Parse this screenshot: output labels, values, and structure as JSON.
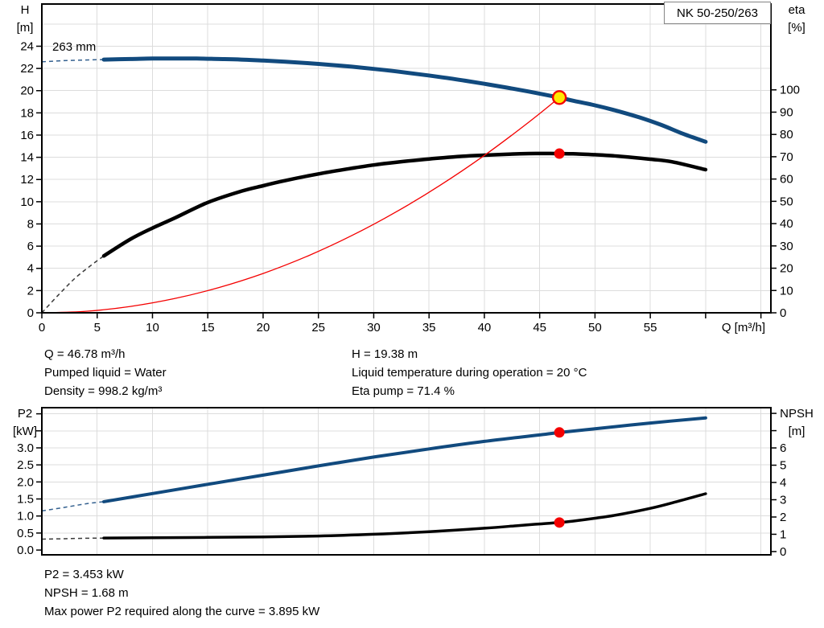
{
  "title_box": "NK 50-250/263",
  "colors": {
    "curve_blue": "#114a7e",
    "curve_black": "#000000",
    "curve_red": "#f40000",
    "marker_red": "#f40000",
    "marker_yellow": "#ffe800",
    "dash_blue": "#33608f",
    "dash_black": "#3a3a3a",
    "grid": "#dcdcdc",
    "frame": "#000000"
  },
  "info_top": {
    "left": [
      "Q = 46.78 m³/h",
      "Pumped liquid = Water",
      "Density = 998.2 kg/m³"
    ],
    "right": [
      "H = 19.38 m",
      "Liquid temperature during operation = 20 °C",
      "Eta pump = 71.4 %"
    ]
  },
  "info_bottom": [
    "P2 = 3.453 kW",
    "NPSH = 1.68 m",
    "Max power P2 required along the curve = 3.895 kW"
  ],
  "duty_point": {
    "Q": 46.78,
    "H": 19.38,
    "eta": 71.4,
    "P2": 3.453,
    "NPSH": 1.68,
    "max_P2": 3.895
  },
  "chart_data": [
    {
      "type": "line",
      "name": "head-efficiency-chart",
      "x_axis": {
        "label": "Q [m³/h]",
        "lim": [
          0,
          65.9
        ],
        "tick_values": [
          0,
          5,
          10,
          15,
          20,
          25,
          30,
          35,
          40,
          45,
          50,
          55,
          60,
          65
        ],
        "tick_labels": [
          "0",
          "5",
          "10",
          "15",
          "20",
          "25",
          "30",
          "35",
          "40",
          "45",
          "50",
          "55",
          "",
          ""
        ],
        "grid_values": [
          5,
          10,
          15,
          20,
          25,
          30,
          35,
          40,
          45,
          50,
          55,
          60,
          65
        ],
        "show_ticks": true
      },
      "left_axis": {
        "label_lines": [
          "H",
          "[m]"
        ],
        "lim": [
          0,
          27.8
        ],
        "tick_values": [
          0,
          2,
          4,
          6,
          8,
          10,
          12,
          14,
          16,
          18,
          20,
          22,
          24
        ],
        "tick_labels": [
          "0",
          "2",
          "4",
          "6",
          "8",
          "10",
          "12",
          "14",
          "16",
          "18",
          "20",
          "22",
          "24"
        ],
        "grid_values": [
          2,
          4,
          6,
          8,
          10,
          12,
          14,
          16,
          18,
          20,
          22,
          24,
          26
        ]
      },
      "right_axis": {
        "label_lines": [
          "eta",
          "[%]"
        ],
        "lim": [
          0,
          138.5
        ],
        "tick_values": [
          0,
          10,
          20,
          30,
          40,
          50,
          60,
          70,
          80,
          90,
          100
        ],
        "tick_labels": [
          "0",
          "10",
          "20",
          "30",
          "40",
          "50",
          "60",
          "70",
          "80",
          "90",
          "100"
        ]
      },
      "series": [
        {
          "name": "head-curve",
          "axis": "left",
          "color_key": "curve_blue",
          "width": 5,
          "dash_color_key": "dash_blue",
          "dash_points": [
            [
              0,
              22.6
            ],
            [
              2,
              22.7
            ],
            [
              4,
              22.76
            ],
            [
              5.6,
              22.8
            ]
          ],
          "points": [
            [
              5.6,
              22.8
            ],
            [
              8,
              22.85
            ],
            [
              10,
              22.89
            ],
            [
              12,
              22.9
            ],
            [
              14,
              22.89
            ],
            [
              16,
              22.85
            ],
            [
              18,
              22.8
            ],
            [
              20,
              22.71
            ],
            [
              22,
              22.61
            ],
            [
              24,
              22.48
            ],
            [
              26,
              22.33
            ],
            [
              28,
              22.16
            ],
            [
              30,
              21.96
            ],
            [
              32,
              21.74
            ],
            [
              34,
              21.49
            ],
            [
              36,
              21.23
            ],
            [
              38,
              20.94
            ],
            [
              40,
              20.62
            ],
            [
              42,
              20.28
            ],
            [
              44,
              19.92
            ],
            [
              46.78,
              19.38
            ],
            [
              48,
              19.1
            ],
            [
              50,
              18.68
            ],
            [
              52,
              18.18
            ],
            [
              54,
              17.6
            ],
            [
              56,
              16.91
            ],
            [
              58,
              16.1
            ],
            [
              60,
              15.4
            ]
          ]
        },
        {
          "name": "efficiency-curve",
          "axis": "right",
          "color_key": "curve_black",
          "width": 4.5,
          "dash_color_key": "dash_black",
          "dash_points": [
            [
              0,
              0
            ],
            [
              1.5,
              8
            ],
            [
              3,
              15.5
            ],
            [
              4.5,
              21.5
            ],
            [
              5.6,
              25.5
            ]
          ],
          "points": [
            [
              5.6,
              25.5
            ],
            [
              8,
              33
            ],
            [
              10,
              38
            ],
            [
              12,
              42.5
            ],
            [
              15,
              49.5
            ],
            [
              18,
              54.5
            ],
            [
              20,
              57
            ],
            [
              22,
              59.3
            ],
            [
              25,
              62.3
            ],
            [
              28,
              64.8
            ],
            [
              30,
              66.3
            ],
            [
              32,
              67.5
            ],
            [
              35,
              69
            ],
            [
              38,
              70.2
            ],
            [
              40,
              70.7
            ],
            [
              42,
              71.1
            ],
            [
              44,
              71.4
            ],
            [
              46,
              71.45
            ],
            [
              46.78,
              71.4
            ],
            [
              48,
              71.3
            ],
            [
              50,
              70.9
            ],
            [
              52,
              70.3
            ],
            [
              55,
              68.9
            ],
            [
              57,
              67.7
            ],
            [
              60,
              64.2
            ]
          ]
        },
        {
          "name": "system-curve",
          "axis": "left",
          "color_key": "curve_red",
          "width": 1.3,
          "points": [
            [
              0,
              0
            ],
            [
              4,
              0.14
            ],
            [
              8,
              0.57
            ],
            [
              12,
              1.28
            ],
            [
              16,
              2.27
            ],
            [
              20,
              3.54
            ],
            [
              24,
              5.1
            ],
            [
              28,
              6.94
            ],
            [
              32,
              9.07
            ],
            [
              36,
              11.48
            ],
            [
              40,
              14.17
            ],
            [
              44,
              17.15
            ],
            [
              46.78,
              19.38
            ]
          ]
        }
      ],
      "markers": [
        {
          "q": 46.78,
          "v": 19.38,
          "axis": "left",
          "style": "duty-ring"
        },
        {
          "q": 46.78,
          "v": 71.4,
          "axis": "right",
          "style": "dot"
        }
      ],
      "annotations": [
        {
          "text": "263 mm",
          "q": 0.95,
          "v": 23.6,
          "axis": "left"
        }
      ]
    },
    {
      "type": "line",
      "name": "power-npsh-chart",
      "x_axis": {
        "label": "",
        "lim": [
          0,
          65.9
        ],
        "tick_values": [],
        "tick_labels": [],
        "grid_values": [
          5,
          10,
          15,
          20,
          25,
          30,
          35,
          40,
          45,
          50,
          55,
          60,
          65
        ],
        "show_ticks": false
      },
      "left_axis": {
        "label_lines": [
          "P2",
          "[kW]"
        ],
        "lim": [
          -0.14,
          4.18
        ],
        "tick_values": [
          0,
          0.5,
          1,
          1.5,
          2,
          2.5,
          3,
          3.5,
          4
        ],
        "tick_labels": [
          "0.0",
          "0.5",
          "1.0",
          "1.5",
          "2.0",
          "2.5",
          "3.0",
          "",
          ""
        ],
        "grid_values": [
          0.5,
          1,
          1.5,
          2,
          2.5,
          3,
          3.5,
          4
        ]
      },
      "right_axis": {
        "label_lines": [
          "NPSH",
          "[m]"
        ],
        "lim": [
          -0.19,
          8.33
        ],
        "tick_values": [
          0,
          1,
          2,
          3,
          4,
          5,
          6,
          7,
          8
        ],
        "tick_labels": [
          "0",
          "1",
          "2",
          "3",
          "4",
          "5",
          "6",
          "",
          ""
        ]
      },
      "series": [
        {
          "name": "power-curve",
          "axis": "left",
          "color_key": "curve_blue",
          "width": 4,
          "dash_color_key": "dash_blue",
          "dash_points": [
            [
              0,
              1.15
            ],
            [
              2,
              1.25
            ],
            [
              4,
              1.36
            ],
            [
              5.6,
              1.42
            ]
          ],
          "points": [
            [
              5.6,
              1.42
            ],
            [
              10,
              1.66
            ],
            [
              15,
              1.93
            ],
            [
              20,
              2.2
            ],
            [
              25,
              2.47
            ],
            [
              30,
              2.73
            ],
            [
              35,
              2.97
            ],
            [
              40,
              3.19
            ],
            [
              45,
              3.38
            ],
            [
              46.78,
              3.45
            ],
            [
              50,
              3.56
            ],
            [
              55,
              3.73
            ],
            [
              60,
              3.88
            ]
          ]
        },
        {
          "name": "npsh-curve",
          "axis": "right",
          "color_key": "curve_black",
          "width": 3.5,
          "dash_color_key": "dash_black",
          "dash_points": [
            [
              0,
              0.72
            ],
            [
              2,
              0.74
            ],
            [
              4,
              0.77
            ],
            [
              5.6,
              0.78
            ]
          ],
          "points": [
            [
              5.6,
              0.78
            ],
            [
              10,
              0.8
            ],
            [
              15,
              0.82
            ],
            [
              20,
              0.85
            ],
            [
              25,
              0.9
            ],
            [
              30,
              1.0
            ],
            [
              35,
              1.15
            ],
            [
              40,
              1.35
            ],
            [
              43,
              1.5
            ],
            [
              45,
              1.6
            ],
            [
              46.78,
              1.68
            ],
            [
              48,
              1.76
            ],
            [
              50,
              1.93
            ],
            [
              52,
              2.12
            ],
            [
              55,
              2.5
            ],
            [
              57,
              2.82
            ],
            [
              60,
              3.35
            ]
          ]
        }
      ],
      "markers": [
        {
          "q": 46.78,
          "v": 3.453,
          "axis": "left",
          "style": "dot"
        },
        {
          "q": 46.78,
          "v": 1.68,
          "axis": "right",
          "style": "dot"
        }
      ],
      "annotations": []
    }
  ]
}
